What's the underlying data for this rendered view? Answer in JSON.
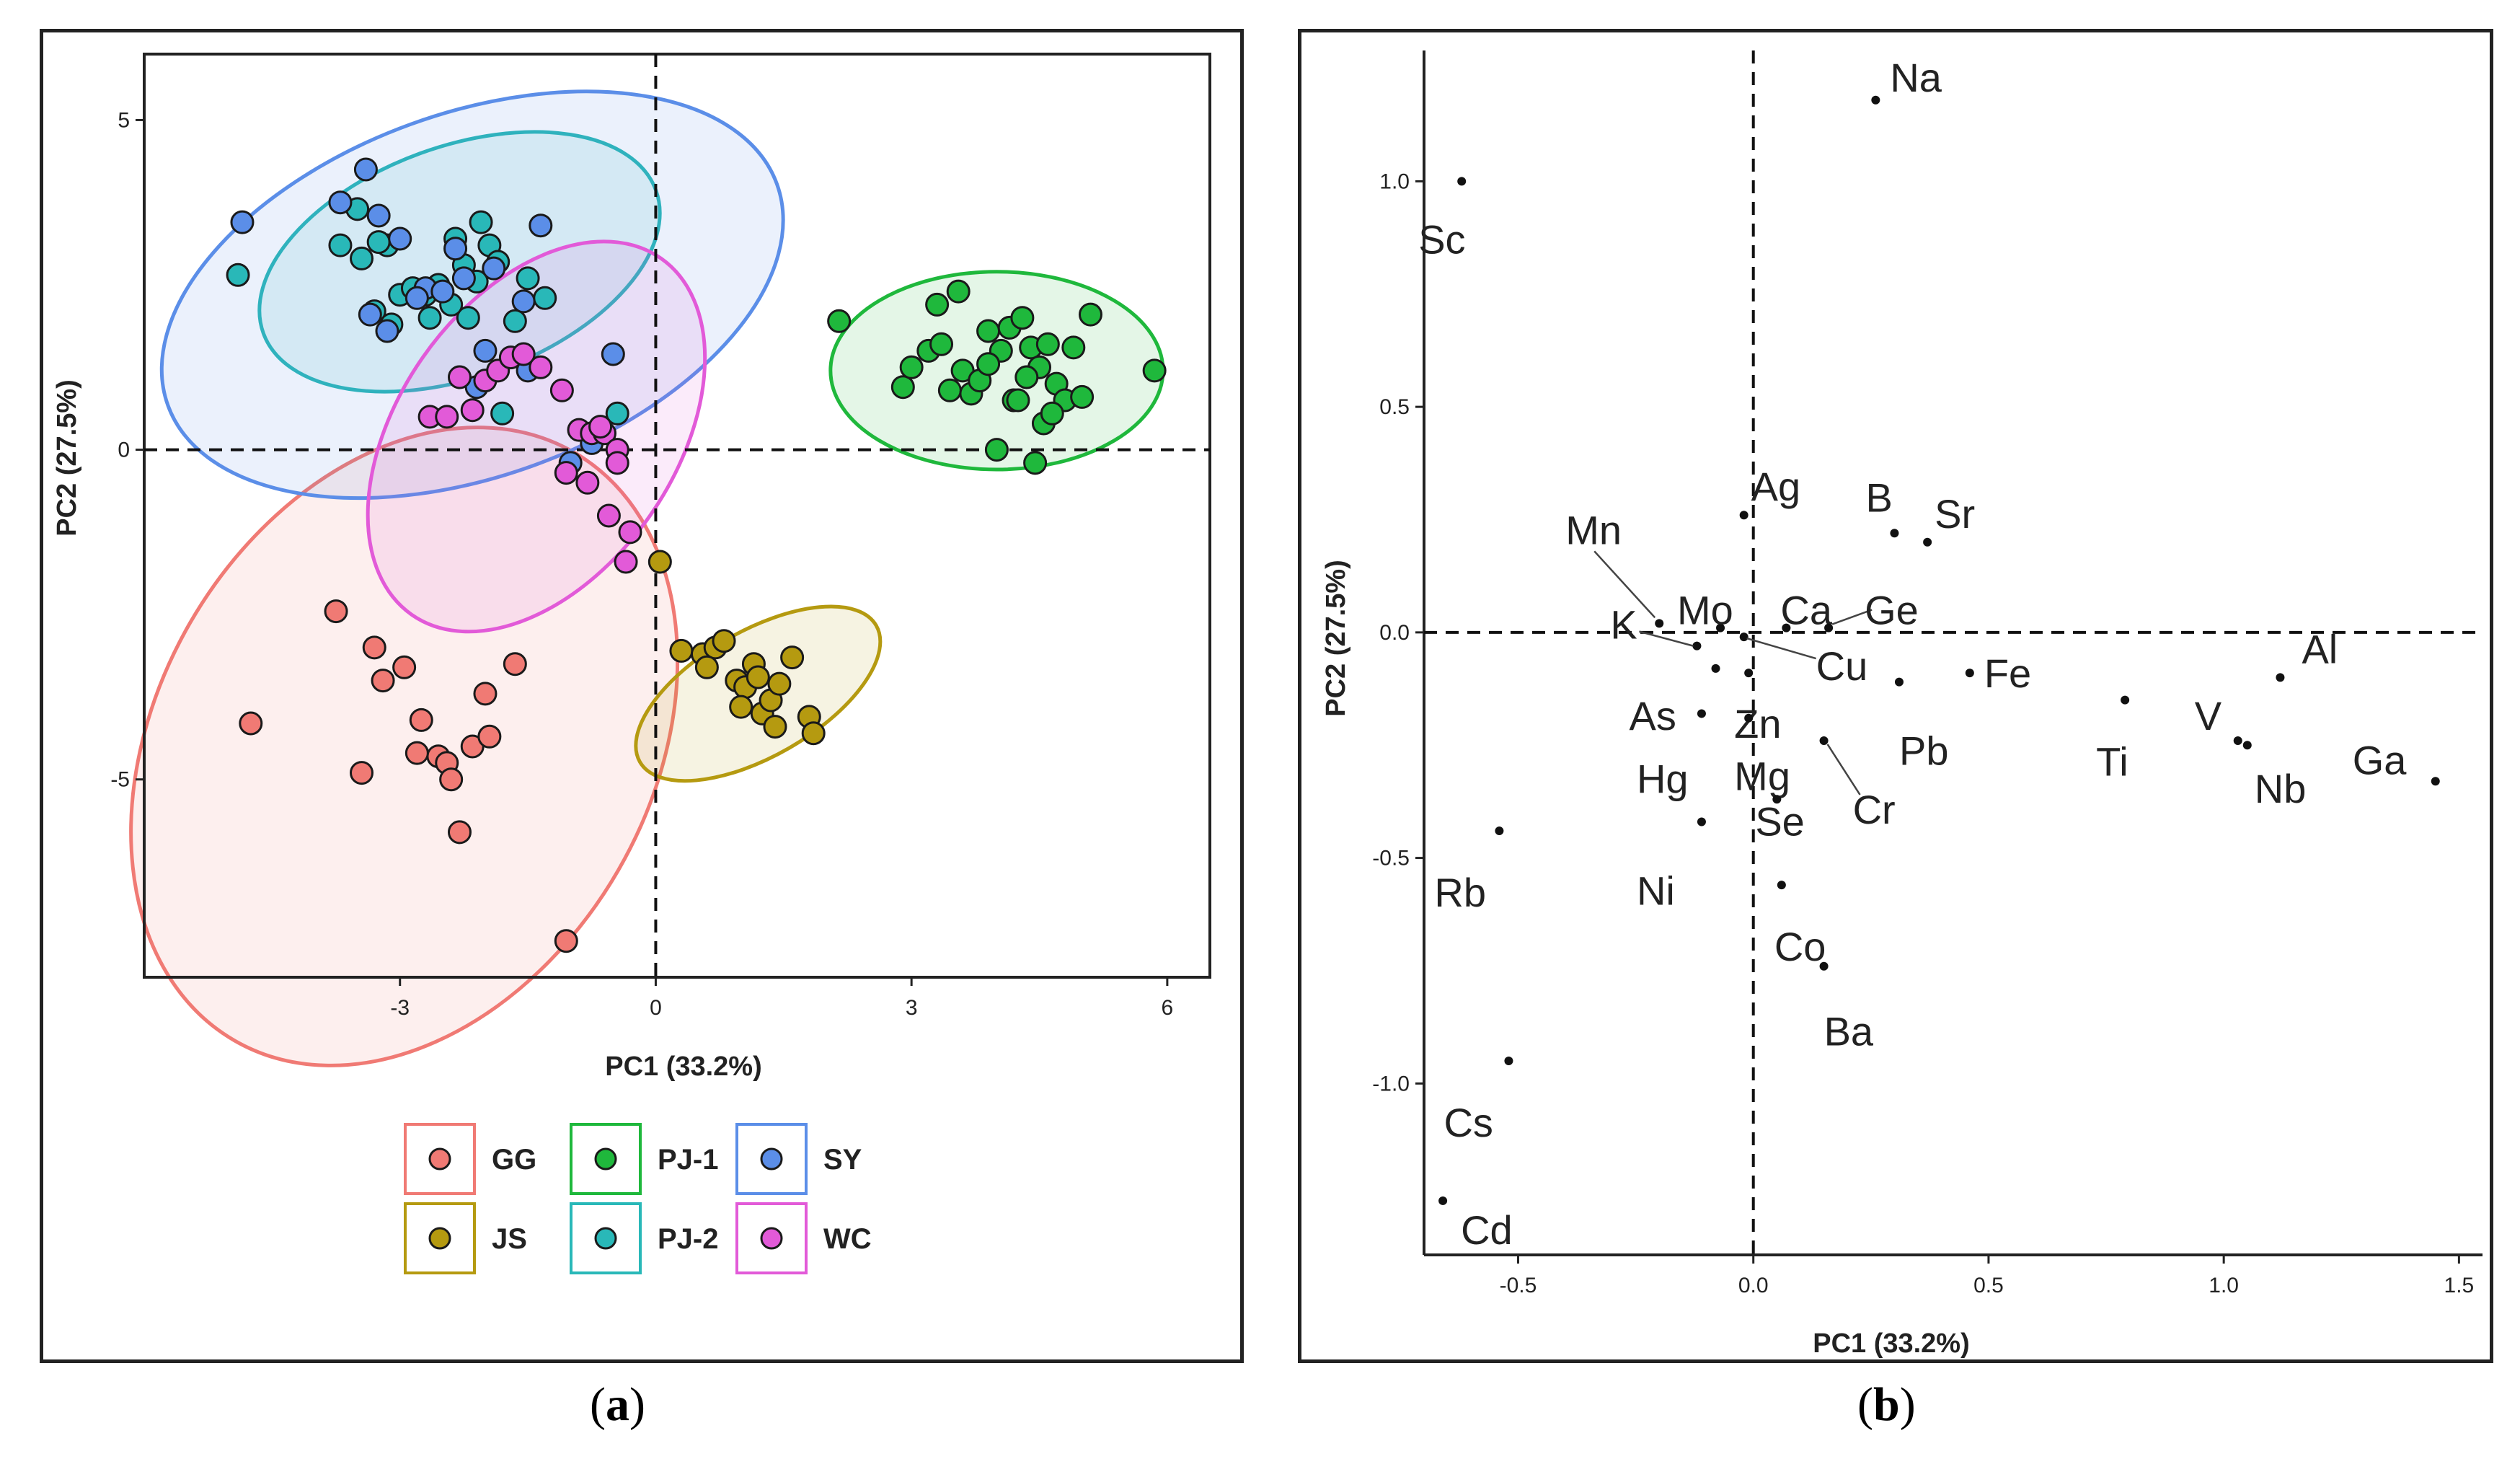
{
  "captions": {
    "a": "a",
    "b": "b"
  },
  "chart_data": [
    {
      "type": "scatter",
      "panel": "a",
      "xlabel": "PC1 (33.2%)",
      "ylabel": "PC2 (27.5%)",
      "xlim": [
        -6.0,
        6.5
      ],
      "ylim": [
        -8.0,
        6.0
      ],
      "xticks": [
        -3,
        0,
        3,
        6
      ],
      "yticks": [
        5,
        0,
        -5
      ],
      "reference_lines": {
        "x": 0,
        "y": 0,
        "style": "dashed"
      },
      "legend_position": "bottom",
      "colors": {
        "GG": "#f07a74",
        "JS": "#b59a10",
        "PJ-1": "#1fb83c",
        "PJ-2": "#29b8b8",
        "SY": "#5b8ee8",
        "WC": "#e25ad8"
      },
      "series": [
        {
          "name": "GG",
          "color": "#f07a74",
          "ellipse": {
            "cx": -2.95,
            "cy": -4.5,
            "rx": 2.9,
            "ry": 5.15,
            "angle": 30
          },
          "x": [
            -4.75,
            -3.75,
            -3.3,
            -3.2,
            -2.95,
            -2.75,
            -2.55,
            -2.45,
            -2.4,
            -2.3,
            -2.15,
            -2.0,
            -1.95,
            -1.65,
            -1.05,
            -3.45,
            -2.8
          ],
          "y": [
            -4.15,
            -2.45,
            -3.0,
            -3.5,
            -3.3,
            -4.1,
            -4.65,
            -4.75,
            -5.0,
            -5.8,
            -4.5,
            -3.7,
            -4.35,
            -3.25,
            -7.45,
            -4.9,
            -4.6
          ]
        },
        {
          "name": "JS",
          "color": "#b59a10",
          "ellipse": {
            "cx": 1.2,
            "cy": -3.7,
            "rx": 1.6,
            "ry": 0.95,
            "angle": -30
          },
          "x": [
            0.05,
            0.3,
            0.55,
            0.7,
            0.8,
            0.95,
            1.05,
            1.15,
            1.25,
            1.35,
            1.45,
            1.6,
            1.8,
            1.85,
            0.6,
            1.0,
            1.4,
            1.2
          ],
          "y": [
            -1.7,
            -3.05,
            -3.1,
            -3.0,
            -2.9,
            -3.5,
            -3.6,
            -3.25,
            -4.0,
            -3.8,
            -3.55,
            -3.15,
            -4.05,
            -4.3,
            -3.3,
            -3.9,
            -4.2,
            -3.45
          ]
        },
        {
          "name": "PJ-1",
          "color": "#1fb83c",
          "ellipse": {
            "cx": 4.0,
            "cy": 1.2,
            "rx": 1.95,
            "ry": 1.5,
            "angle": 0
          },
          "x": [
            2.15,
            2.9,
            3.0,
            3.2,
            3.3,
            3.45,
            3.55,
            3.6,
            3.7,
            3.8,
            3.9,
            4.0,
            4.05,
            4.15,
            4.2,
            4.3,
            4.4,
            4.45,
            4.5,
            4.55,
            4.6,
            4.7,
            4.8,
            4.9,
            5.0,
            5.1,
            5.85,
            3.35,
            3.9,
            4.25,
            4.65,
            4.35
          ],
          "y": [
            1.95,
            0.95,
            1.25,
            1.5,
            2.2,
            0.9,
            2.4,
            1.2,
            0.85,
            1.05,
            1.8,
            0.0,
            1.5,
            1.85,
            0.75,
            2.0,
            1.55,
            -0.2,
            1.25,
            0.4,
            1.6,
            1.0,
            0.75,
            1.55,
            0.8,
            2.05,
            1.2,
            1.6,
            1.3,
            0.75,
            0.55,
            1.1
          ]
        },
        {
          "name": "PJ-2",
          "color": "#29b8b8",
          "ellipse": {
            "cx": -2.3,
            "cy": 2.85,
            "rx": 2.45,
            "ry": 1.75,
            "angle": -20
          },
          "x": [
            -4.9,
            -3.7,
            -3.5,
            -3.45,
            -3.3,
            -3.15,
            -3.0,
            -2.85,
            -2.7,
            -2.55,
            -2.35,
            -2.25,
            -2.2,
            -2.05,
            -1.95,
            -1.85,
            -1.65,
            -1.5,
            -1.3,
            -0.45,
            -3.1,
            -2.4,
            -1.8,
            -3.25,
            -2.65,
            -2.1
          ],
          "y": [
            2.65,
            3.1,
            3.65,
            2.9,
            2.1,
            3.1,
            2.35,
            2.45,
            2.35,
            2.5,
            3.2,
            2.8,
            2.0,
            3.45,
            3.1,
            2.85,
            1.95,
            2.6,
            2.3,
            0.55,
            1.9,
            2.2,
            0.55,
            3.15,
            2.0,
            2.55
          ]
        },
        {
          "name": "SY",
          "color": "#5b8ee8",
          "ellipse": {
            "cx": -2.15,
            "cy": 2.35,
            "rx": 3.8,
            "ry": 2.75,
            "angle": -20
          },
          "x": [
            -4.85,
            -3.7,
            -3.4,
            -3.35,
            -3.25,
            -3.15,
            -3.0,
            -2.7,
            -2.5,
            -2.35,
            -2.25,
            -2.1,
            -1.9,
            -1.55,
            -1.35,
            -0.5,
            -1.0,
            -0.75,
            -1.5,
            -2.8,
            -2.0
          ],
          "y": [
            3.45,
            3.75,
            4.25,
            2.05,
            3.55,
            1.8,
            3.2,
            2.45,
            2.4,
            3.05,
            2.6,
            0.95,
            2.75,
            2.25,
            3.4,
            1.45,
            -0.2,
            0.1,
            1.2,
            2.3,
            1.5
          ]
        },
        {
          "name": "WC",
          "color": "#e25ad8",
          "ellipse": {
            "cx": -1.4,
            "cy": 0.2,
            "rx": 2.55,
            "ry": 2.1,
            "angle": -55
          },
          "x": [
            -2.65,
            -2.45,
            -2.15,
            -2.0,
            -1.85,
            -1.7,
            -1.55,
            -1.35,
            -1.1,
            -0.9,
            -0.75,
            -0.6,
            -0.45,
            -0.35,
            -1.05,
            -0.8,
            -0.55,
            -0.3,
            -0.65,
            -0.45,
            -2.3
          ],
          "y": [
            0.5,
            0.5,
            0.6,
            1.05,
            1.2,
            1.4,
            1.45,
            1.25,
            0.9,
            0.3,
            0.25,
            0.25,
            0.0,
            -1.7,
            -0.35,
            -0.5,
            -1.0,
            -1.25,
            0.35,
            -0.2,
            1.1
          ]
        }
      ]
    },
    {
      "type": "scatter",
      "panel": "b",
      "xlabel": "PC1 (33.2%)",
      "ylabel": "PC2 (27.5%)",
      "xlim": [
        -0.7,
        1.55
      ],
      "ylim": [
        -1.38,
        1.29
      ],
      "xticks": [
        -0.5,
        0.0,
        0.5,
        1.0,
        1.5
      ],
      "yticks": [
        1.0,
        0.5,
        0.0,
        -0.5,
        -1.0
      ],
      "reference_lines": {
        "x": 0,
        "y": 0,
        "style": "dashed"
      },
      "points": [
        {
          "label": "Na",
          "x": 0.26,
          "y": 1.18
        },
        {
          "label": "Sc",
          "x": -0.62,
          "y": 1.0
        },
        {
          "label": "Ag",
          "x": -0.02,
          "y": 0.26
        },
        {
          "label": "B",
          "x": 0.3,
          "y": 0.22
        },
        {
          "label": "Sr",
          "x": 0.37,
          "y": 0.2
        },
        {
          "label": "Mn",
          "x": -0.2,
          "y": 0.02
        },
        {
          "label": "Mo",
          "x": -0.07,
          "y": 0.01
        },
        {
          "label": "Ca",
          "x": 0.07,
          "y": 0.01
        },
        {
          "label": "Ge",
          "x": 0.16,
          "y": 0.01
        },
        {
          "label": "K",
          "x": -0.12,
          "y": -0.03
        },
        {
          "label": "Cu",
          "x": -0.02,
          "y": -0.01
        },
        {
          "label": "Fe",
          "x": 0.46,
          "y": -0.09
        },
        {
          "label": "As",
          "x": -0.08,
          "y": -0.08
        },
        {
          "label": "Zn",
          "x": -0.01,
          "y": -0.09
        },
        {
          "label": "Pb",
          "x": 0.31,
          "y": -0.11
        },
        {
          "label": "Al",
          "x": 1.12,
          "y": -0.1
        },
        {
          "label": "Ti",
          "x": 0.79,
          "y": -0.15
        },
        {
          "label": "V",
          "x": 1.03,
          "y": -0.24
        },
        {
          "label": "Nb",
          "x": 1.05,
          "y": -0.25
        },
        {
          "label": "Ga",
          "x": 1.45,
          "y": -0.33
        },
        {
          "label": "Hg",
          "x": -0.11,
          "y": -0.18
        },
        {
          "label": "Mg",
          "x": -0.01,
          "y": -0.19
        },
        {
          "label": "Cr",
          "x": 0.15,
          "y": -0.24
        },
        {
          "label": "Se",
          "x": 0.05,
          "y": -0.37
        },
        {
          "label": "Ni",
          "x": -0.11,
          "y": -0.42
        },
        {
          "label": "Rb",
          "x": -0.54,
          "y": -0.44
        },
        {
          "label": "Co",
          "x": 0.06,
          "y": -0.56
        },
        {
          "label": "Ba",
          "x": 0.15,
          "y": -0.74
        },
        {
          "label": "Cs",
          "x": -0.52,
          "y": -0.95
        },
        {
          "label": "Cd",
          "x": -0.66,
          "y": -1.26
        }
      ]
    }
  ]
}
